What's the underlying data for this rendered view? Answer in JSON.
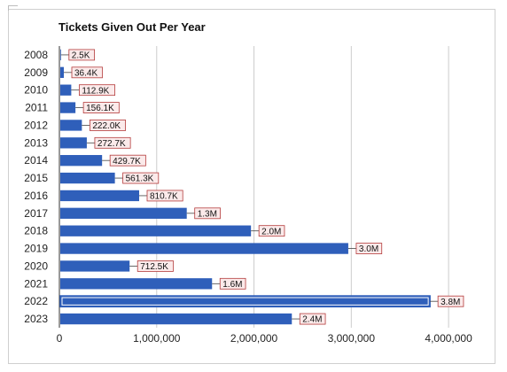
{
  "chart_data": {
    "type": "bar",
    "orientation": "horizontal",
    "title": "Tickets Given Out Per Year",
    "xlabel": "",
    "ylabel": "",
    "xlim": [
      0,
      4400000
    ],
    "grid": true,
    "legend": "none",
    "colors": {
      "bar": "#2f5fba",
      "label_bg": "#fbeaea",
      "label_border": "#b43b3b",
      "grid": "#cccccc"
    },
    "categories": [
      "2008",
      "2009",
      "2010",
      "2011",
      "2012",
      "2013",
      "2014",
      "2015",
      "2016",
      "2017",
      "2018",
      "2019",
      "2020",
      "2021",
      "2022",
      "2023"
    ],
    "values": [
      2500,
      36400,
      112900,
      156100,
      222000,
      272700,
      429700,
      561300,
      810700,
      1300000,
      1960000,
      2960000,
      712500,
      1560000,
      3800000,
      2380000
    ],
    "data_labels": [
      "2.5K",
      "36.4K",
      "112.9K",
      "156.1K",
      "222.0K",
      "272.7K",
      "429.7K",
      "561.3K",
      "810.7K",
      "1.3M",
      "2.0M",
      "3.0M",
      "712.5K",
      "1.6M",
      "3.8M",
      "2.4M"
    ],
    "x_ticks": [
      0,
      1000000,
      2000000,
      3000000,
      4000000
    ],
    "x_tick_labels": [
      "0",
      "1,000,000",
      "2,000,000",
      "3,000,000",
      "4,000,000"
    ],
    "highlighted_category": "2022"
  }
}
